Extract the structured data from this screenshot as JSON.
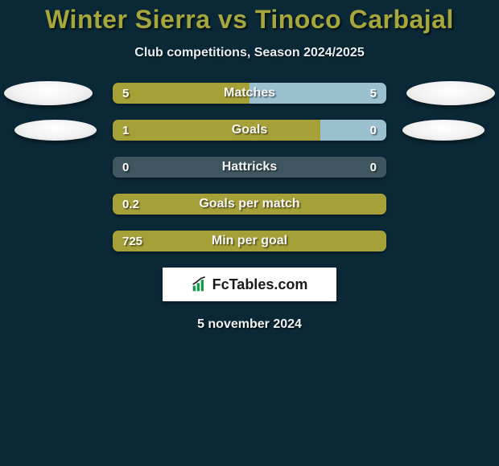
{
  "title": "Winter Sierra vs Tinoco Carbajal",
  "subtitle": "Club competitions, Season 2024/2025",
  "date": "5 november 2024",
  "attribution": "FcTables.com",
  "colors": {
    "background": "#0a2836",
    "title": "#a5a63b",
    "left_bar": "#a5a138",
    "right_bar": "#9bc0d0",
    "track": "#3f5661",
    "ellipse": "#f2f2f2"
  },
  "stats": [
    {
      "label": "Matches",
      "left_val": "5",
      "right_val": "5",
      "left_pct": 50,
      "right_pct": 50,
      "show_left_ellipse": true,
      "show_right_ellipse": true,
      "ellipse_variant": 1
    },
    {
      "label": "Goals",
      "left_val": "1",
      "right_val": "0",
      "left_pct": 76,
      "right_pct": 24,
      "show_left_ellipse": true,
      "show_right_ellipse": true,
      "ellipse_variant": 2
    },
    {
      "label": "Hattricks",
      "left_val": "0",
      "right_val": "0",
      "left_pct": 0,
      "right_pct": 0,
      "show_left_ellipse": false,
      "show_right_ellipse": false,
      "ellipse_variant": 0
    },
    {
      "label": "Goals per match",
      "left_val": "0.2",
      "right_val": "",
      "left_pct": 100,
      "right_pct": 0,
      "show_left_ellipse": false,
      "show_right_ellipse": false,
      "ellipse_variant": 0
    },
    {
      "label": "Min per goal",
      "left_val": "725",
      "right_val": "",
      "left_pct": 100,
      "right_pct": 0,
      "show_left_ellipse": false,
      "show_right_ellipse": false,
      "ellipse_variant": 0
    }
  ]
}
